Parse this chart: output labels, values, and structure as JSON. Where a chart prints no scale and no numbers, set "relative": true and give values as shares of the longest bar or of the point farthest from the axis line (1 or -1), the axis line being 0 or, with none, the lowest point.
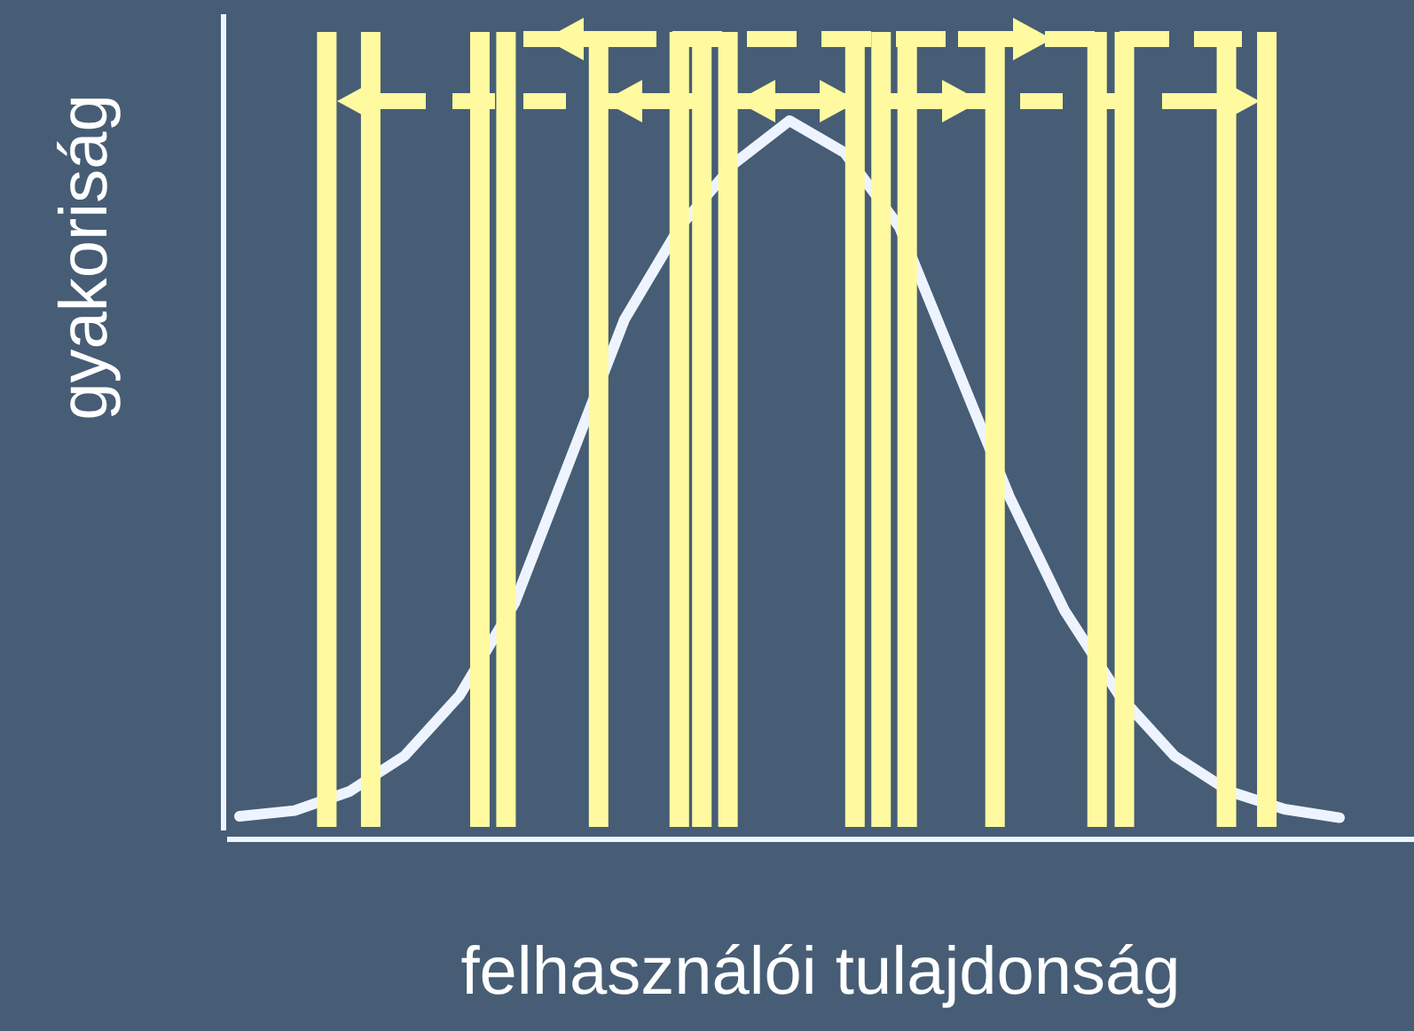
{
  "chart_data": {
    "type": "line",
    "relative": true,
    "xlabel": "felhasználói tulajdonság",
    "ylabel": "gyakoriság",
    "line_style": "solid",
    "categories": [
      null,
      null,
      null,
      null,
      null,
      null,
      null,
      null,
      null,
      null,
      null,
      null,
      null,
      null,
      null,
      null,
      null,
      null,
      null,
      null,
      null
    ],
    "series": [
      {
        "color": "#eef4ff",
        "values": [
          0.02,
          0.028,
          0.055,
          0.105,
          0.19,
          0.32,
          0.52,
          0.72,
          0.85,
          0.94,
          1,
          0.955,
          0.85,
          0.66,
          0.47,
          0.31,
          0.19,
          0.105,
          0.055,
          0.03,
          0.018
        ]
      }
    ]
  }
}
